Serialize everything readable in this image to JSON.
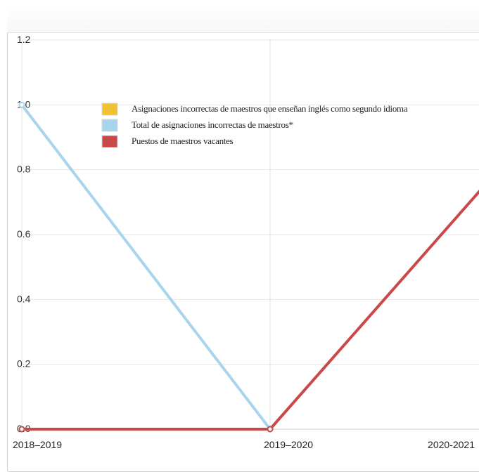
{
  "chart_data": {
    "type": "line",
    "categories": [
      "2018–2019",
      "2019–2020",
      "2020-2021"
    ],
    "ylim": [
      0,
      1.2
    ],
    "y_ticks": [
      "0.0",
      "0.2",
      "0.4",
      "0.6",
      "0.8",
      "1.0",
      "1.2"
    ],
    "grid": true,
    "legend_position": "top-center",
    "series": [
      {
        "name": "Asignaciones incorrectas de maestros que enseñan inglés como segundo idioma",
        "color": "#f0c230",
        "values": [
          0,
          0,
          null
        ]
      },
      {
        "name": "Total de asignaciones incorrectas de maestros*",
        "color": "#a9d4ee",
        "values": [
          1,
          0,
          null
        ]
      },
      {
        "name": "Puestos de maestros vacantes",
        "color": "#c9484a",
        "values": [
          0,
          0,
          0.87
        ]
      }
    ]
  }
}
